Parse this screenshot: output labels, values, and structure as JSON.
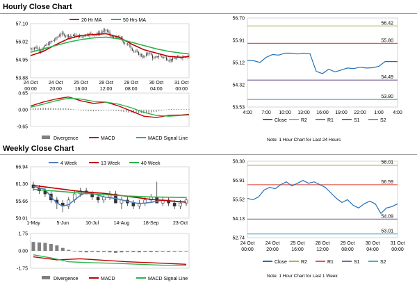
{
  "sections": {
    "hourly_title": "Hourly Close Chart",
    "weekly_title": "Weekly Close Chart"
  },
  "notes": {
    "hourly": "Note: 1 Hour Chart for Last 24 Hours",
    "weekly": "Note: 1 Hour Chart for Last 1 Week"
  },
  "colors": {
    "candle": "#333333",
    "ma_red": "#c00000",
    "ma_green": "#2db34a",
    "ma_blue": "#4f81bd",
    "close_line": "#1f6fb8",
    "r2": "#9bbb59",
    "r1": "#e0584f",
    "s1": "#8064a2",
    "s2": "#4bacc6",
    "divergence": "#808080",
    "grid": "#d9d9d9"
  },
  "chart_data": [
    {
      "id": "hourly-price",
      "type": "candlestick",
      "legend": [
        "20 Hr MA",
        "50 Hrs MA"
      ],
      "xticks": [
        {
          "i": 0,
          "label": [
            "24 Oct",
            "00:00"
          ]
        },
        {
          "i": 20,
          "label": [
            "24 Oct",
            "20:00"
          ]
        },
        {
          "i": 40,
          "label": [
            "25 Oct",
            "16:00"
          ]
        },
        {
          "i": 60,
          "label": [
            "28 Oct",
            "12:00"
          ]
        },
        {
          "i": 80,
          "label": [
            "29 Oct",
            "08:00"
          ]
        },
        {
          "i": 100,
          "label": [
            "30 Oct",
            "04:00"
          ]
        },
        {
          "i": 120,
          "label": [
            "31 Oct",
            "00:00"
          ]
        }
      ],
      "yticks": [
        53.88,
        54.95,
        56.02,
        57.1
      ],
      "ylim": [
        53.88,
        57.1
      ],
      "n": 127,
      "close_points": [
        [
          0,
          55.6
        ],
        [
          4,
          55.7
        ],
        [
          8,
          55.5
        ],
        [
          12,
          55.8
        ],
        [
          16,
          56.0
        ],
        [
          20,
          56.2
        ],
        [
          24,
          56.5
        ],
        [
          28,
          56.4
        ],
        [
          32,
          56.35
        ],
        [
          36,
          56.4
        ],
        [
          40,
          56.3
        ],
        [
          44,
          56.45
        ],
        [
          48,
          56.5
        ],
        [
          52,
          56.45
        ],
        [
          56,
          56.6
        ],
        [
          60,
          56.7
        ],
        [
          62,
          56.55
        ],
        [
          66,
          56.2
        ],
        [
          70,
          56.35
        ],
        [
          74,
          56.0
        ],
        [
          78,
          55.8
        ],
        [
          82,
          55.5
        ],
        [
          86,
          55.3
        ],
        [
          90,
          55.1
        ],
        [
          94,
          55.4
        ],
        [
          98,
          55.0
        ],
        [
          102,
          55.2
        ],
        [
          106,
          55.1
        ],
        [
          110,
          54.95
        ],
        [
          114,
          55.0
        ],
        [
          118,
          55.1
        ],
        [
          122,
          55.15
        ],
        [
          126,
          55.2
        ]
      ],
      "ma20_points": [
        [
          0,
          55.2
        ],
        [
          10,
          55.45
        ],
        [
          20,
          55.85
        ],
        [
          30,
          56.2
        ],
        [
          40,
          56.4
        ],
        [
          50,
          56.45
        ],
        [
          60,
          56.5
        ],
        [
          70,
          56.3
        ],
        [
          80,
          55.9
        ],
        [
          90,
          55.55
        ],
        [
          100,
          55.35
        ],
        [
          110,
          55.15
        ],
        [
          120,
          55.1
        ],
        [
          126,
          55.15
        ]
      ],
      "ma50_points": [
        [
          0,
          55.4
        ],
        [
          10,
          55.6
        ],
        [
          20,
          55.8
        ],
        [
          30,
          56.0
        ],
        [
          40,
          56.15
        ],
        [
          50,
          56.25
        ],
        [
          60,
          56.3
        ],
        [
          70,
          56.2
        ],
        [
          80,
          56.0
        ],
        [
          90,
          55.8
        ],
        [
          100,
          55.6
        ],
        [
          110,
          55.45
        ],
        [
          120,
          55.35
        ],
        [
          126,
          55.3
        ]
      ]
    },
    {
      "id": "hourly-macd",
      "type": "line",
      "legend": [
        "Divergence",
        "MACD",
        "MACD Signal Line"
      ],
      "yticks": [
        -0.65,
        0.0,
        0.65
      ],
      "ylim": [
        -0.65,
        0.65
      ],
      "n": 127,
      "macd_points": [
        [
          0,
          0.15
        ],
        [
          10,
          0.3
        ],
        [
          20,
          0.42
        ],
        [
          30,
          0.5
        ],
        [
          40,
          0.35
        ],
        [
          50,
          0.25
        ],
        [
          60,
          0.3
        ],
        [
          70,
          0.15
        ],
        [
          80,
          -0.05
        ],
        [
          90,
          -0.25
        ],
        [
          100,
          -0.3
        ],
        [
          110,
          -0.22
        ],
        [
          120,
          -0.2
        ],
        [
          126,
          -0.18
        ]
      ],
      "signal_points": [
        [
          0,
          0.1
        ],
        [
          10,
          0.22
        ],
        [
          20,
          0.35
        ],
        [
          30,
          0.45
        ],
        [
          40,
          0.42
        ],
        [
          50,
          0.33
        ],
        [
          60,
          0.3
        ],
        [
          70,
          0.22
        ],
        [
          80,
          0.08
        ],
        [
          90,
          -0.1
        ],
        [
          100,
          -0.22
        ],
        [
          110,
          -0.25
        ],
        [
          120,
          -0.22
        ],
        [
          126,
          -0.2
        ]
      ],
      "divergence_points": [
        [
          0,
          0.05
        ],
        [
          10,
          0.08
        ],
        [
          20,
          0.07
        ],
        [
          30,
          0.05
        ],
        [
          40,
          -0.03
        ],
        [
          50,
          -0.06
        ],
        [
          60,
          -0.02
        ],
        [
          70,
          -0.05
        ],
        [
          80,
          -0.12
        ],
        [
          90,
          -0.14
        ],
        [
          100,
          -0.08
        ],
        [
          110,
          0.03
        ],
        [
          120,
          0.02
        ],
        [
          126,
          0.02
        ]
      ]
    },
    {
      "id": "hourly-pivot",
      "type": "line",
      "legend": [
        "Close",
        "R2",
        "R1",
        "S1",
        "S2"
      ],
      "xticks": [
        "4:00",
        "7:00",
        "10:00",
        "13:00",
        "16:00",
        "19:00",
        "22:00",
        "1:00",
        "4:00"
      ],
      "yticks": [
        53.53,
        54.32,
        55.12,
        55.91,
        56.7
      ],
      "ylim": [
        53.53,
        56.7
      ],
      "levels": {
        "R2": 56.42,
        "R1": 55.8,
        "S1": 54.49,
        "S2": 53.8
      },
      "level_labels": {
        "R2": "56.42",
        "R1": "55.80",
        "S1": "54.49",
        "S2": "53.80"
      },
      "close_points": [
        [
          0,
          55.2
        ],
        [
          1,
          55.18
        ],
        [
          2,
          55.12
        ],
        [
          3,
          55.3
        ],
        [
          4,
          55.4
        ],
        [
          5,
          55.38
        ],
        [
          6,
          55.45
        ],
        [
          7,
          55.45
        ],
        [
          8,
          55.42
        ],
        [
          9,
          55.45
        ],
        [
          10,
          55.43
        ],
        [
          11,
          54.8
        ],
        [
          12,
          54.72
        ],
        [
          13,
          54.88
        ],
        [
          14,
          54.78
        ],
        [
          15,
          54.85
        ],
        [
          16,
          54.92
        ],
        [
          17,
          54.9
        ],
        [
          18,
          54.95
        ],
        [
          19,
          54.92
        ],
        [
          20,
          54.93
        ],
        [
          21,
          54.98
        ],
        [
          22,
          55.15
        ],
        [
          23,
          55.15
        ],
        [
          24,
          55.15
        ]
      ]
    },
    {
      "id": "weekly-price",
      "type": "candlestick",
      "legend": [
        "4 Week",
        "13 Week",
        "40 Week"
      ],
      "xticks": [
        {
          "i": 0,
          "label": [
            "1-May"
          ]
        },
        {
          "i": 5,
          "label": [
            "5-Jun"
          ]
        },
        {
          "i": 10,
          "label": [
            "10-Jul"
          ]
        },
        {
          "i": 15,
          "label": [
            "14-Aug"
          ]
        },
        {
          "i": 20,
          "label": [
            "18-Sep"
          ]
        },
        {
          "i": 25,
          "label": [
            "23-Oct"
          ]
        }
      ],
      "yticks": [
        50.01,
        55.66,
        61.3,
        66.94
      ],
      "ylim": [
        50.01,
        66.94
      ],
      "n": 27,
      "candles": [
        [
          61,
          62,
          59,
          60
        ],
        [
          60,
          61,
          58,
          59
        ],
        [
          59,
          60,
          57,
          58
        ],
        [
          58,
          59,
          55,
          56
        ],
        [
          56,
          57,
          53,
          55
        ],
        [
          55,
          56,
          52,
          54
        ],
        [
          54,
          57,
          53,
          56
        ],
        [
          56,
          59,
          55,
          58
        ],
        [
          58,
          60,
          57,
          59
        ],
        [
          59,
          60,
          58,
          58
        ],
        [
          58,
          59,
          56,
          57
        ],
        [
          57,
          58,
          55,
          56
        ],
        [
          56,
          58,
          55,
          57
        ],
        [
          57,
          59,
          56,
          58
        ],
        [
          58,
          59,
          55,
          55
        ],
        [
          55,
          57,
          53,
          56
        ],
        [
          56,
          57,
          54,
          55
        ],
        [
          55,
          56,
          53,
          54
        ],
        [
          54,
          56,
          53,
          55
        ],
        [
          55,
          57,
          54,
          56
        ],
        [
          56,
          58,
          55,
          57
        ],
        [
          57,
          62,
          55,
          55
        ],
        [
          55,
          57,
          54,
          56
        ],
        [
          56,
          57,
          54,
          55
        ],
        [
          55,
          56,
          53,
          54
        ],
        [
          54,
          56,
          53,
          55
        ],
        [
          55,
          57,
          54,
          56
        ]
      ],
      "ma4_points": [
        [
          0,
          60.5
        ],
        [
          2,
          59.5
        ],
        [
          3,
          57
        ],
        [
          4,
          55
        ],
        [
          5,
          54
        ],
        [
          6,
          54.5
        ],
        [
          7,
          56
        ],
        [
          8,
          57.5
        ],
        [
          9,
          58.5
        ],
        [
          10,
          58.2
        ],
        [
          12,
          57
        ],
        [
          14,
          56.5
        ],
        [
          16,
          55.6
        ],
        [
          18,
          54.8
        ],
        [
          20,
          55.2
        ],
        [
          22,
          56
        ],
        [
          24,
          55.5
        ],
        [
          26,
          55.3
        ]
      ],
      "ma13_points": [
        [
          0,
          60.8
        ],
        [
          4,
          59.8
        ],
        [
          8,
          58.8
        ],
        [
          12,
          58.2
        ],
        [
          16,
          57.2
        ],
        [
          20,
          56.2
        ],
        [
          24,
          55.6
        ],
        [
          26,
          55.3
        ]
      ],
      "ma40_points": [
        [
          0,
          59.5
        ],
        [
          4,
          58.9
        ],
        [
          8,
          58.3
        ],
        [
          12,
          57.8
        ],
        [
          16,
          57.3
        ],
        [
          20,
          57
        ],
        [
          24,
          56.9
        ],
        [
          26,
          56.8
        ]
      ]
    },
    {
      "id": "weekly-macd",
      "type": "line",
      "legend": [
        "Divergence",
        "MACD",
        "MACD Signal Line"
      ],
      "yticks": [
        -1.75,
        0.0,
        1.75
      ],
      "ylim": [
        -1.75,
        1.75
      ],
      "n": 27,
      "macd_points": [
        [
          0,
          -0.6
        ],
        [
          4,
          -0.9
        ],
        [
          8,
          -0.8
        ],
        [
          12,
          -0.95
        ],
        [
          16,
          -1.1
        ],
        [
          20,
          -1.2
        ],
        [
          24,
          -1.3
        ],
        [
          26,
          -1.35
        ]
      ],
      "signal_points": [
        [
          0,
          -0.4
        ],
        [
          3,
          -0.7
        ],
        [
          6,
          -1.1
        ],
        [
          10,
          -1.2
        ],
        [
          14,
          -1.25
        ],
        [
          18,
          -1.35
        ],
        [
          22,
          -1.45
        ],
        [
          26,
          -1.45
        ]
      ],
      "divergence_points": [
        [
          0,
          0.9
        ],
        [
          1,
          0.85
        ],
        [
          2,
          0.8
        ],
        [
          3,
          0.7
        ],
        [
          4,
          0.55
        ],
        [
          5,
          0.3
        ],
        [
          6,
          0.1
        ],
        [
          7,
          -0.05
        ],
        [
          8,
          -0.1
        ],
        [
          9,
          -0.15
        ],
        [
          10,
          -0.1
        ],
        [
          11,
          -0.12
        ],
        [
          12,
          -0.1
        ],
        [
          13,
          -0.15
        ],
        [
          14,
          -0.2
        ],
        [
          15,
          -0.15
        ],
        [
          16,
          -0.1
        ],
        [
          17,
          -0.12
        ],
        [
          18,
          -0.15
        ],
        [
          19,
          -0.1
        ],
        [
          20,
          -0.12
        ],
        [
          21,
          -0.1
        ],
        [
          22,
          -0.08
        ],
        [
          23,
          -0.1
        ],
        [
          24,
          -0.08
        ],
        [
          25,
          -0.07
        ],
        [
          26,
          -0.06
        ]
      ]
    },
    {
      "id": "weekly-pivot",
      "type": "line",
      "legend": [
        "Close",
        "R2",
        "R1",
        "S1",
        "S2"
      ],
      "xticks": [
        [
          "24 Oct",
          "00:00"
        ],
        [
          "24 Oct",
          "20:00"
        ],
        [
          "25 Oct",
          "16:00"
        ],
        [
          "28 Oct",
          "12:00"
        ],
        [
          "29 Oct",
          "08:00"
        ],
        [
          "30 Oct",
          "04:00"
        ],
        [
          "31 Oct",
          "00:00"
        ]
      ],
      "yticks": [
        52.74,
        54.13,
        55.52,
        56.91,
        58.3
      ],
      "ylim": [
        52.74,
        58.3
      ],
      "levels": {
        "R2": 58.01,
        "R1": 56.59,
        "S1": 54.09,
        "S2": 53.01
      },
      "level_labels": {
        "R2": "58.01",
        "R1": "56.59",
        "S1": "54.09",
        "S2": "53.01"
      },
      "close_points": [
        [
          0,
          55.6
        ],
        [
          3,
          55.5
        ],
        [
          6,
          55.7
        ],
        [
          9,
          56.2
        ],
        [
          12,
          56.4
        ],
        [
          15,
          56.3
        ],
        [
          18,
          56.6
        ],
        [
          21,
          56.8
        ],
        [
          24,
          56.5
        ],
        [
          27,
          56.7
        ],
        [
          30,
          56.9
        ],
        [
          33,
          56.7
        ],
        [
          36,
          56.8
        ],
        [
          39,
          56.6
        ],
        [
          42,
          56.4
        ],
        [
          45,
          56.0
        ],
        [
          48,
          55.6
        ],
        [
          51,
          55.3
        ],
        [
          54,
          55.5
        ],
        [
          57,
          55.1
        ],
        [
          60,
          54.9
        ],
        [
          63,
          55.2
        ],
        [
          66,
          55.4
        ],
        [
          69,
          55.2
        ],
        [
          72,
          54.5
        ],
        [
          75,
          54.9
        ],
        [
          78,
          55.0
        ],
        [
          81,
          55.2
        ]
      ]
    }
  ]
}
